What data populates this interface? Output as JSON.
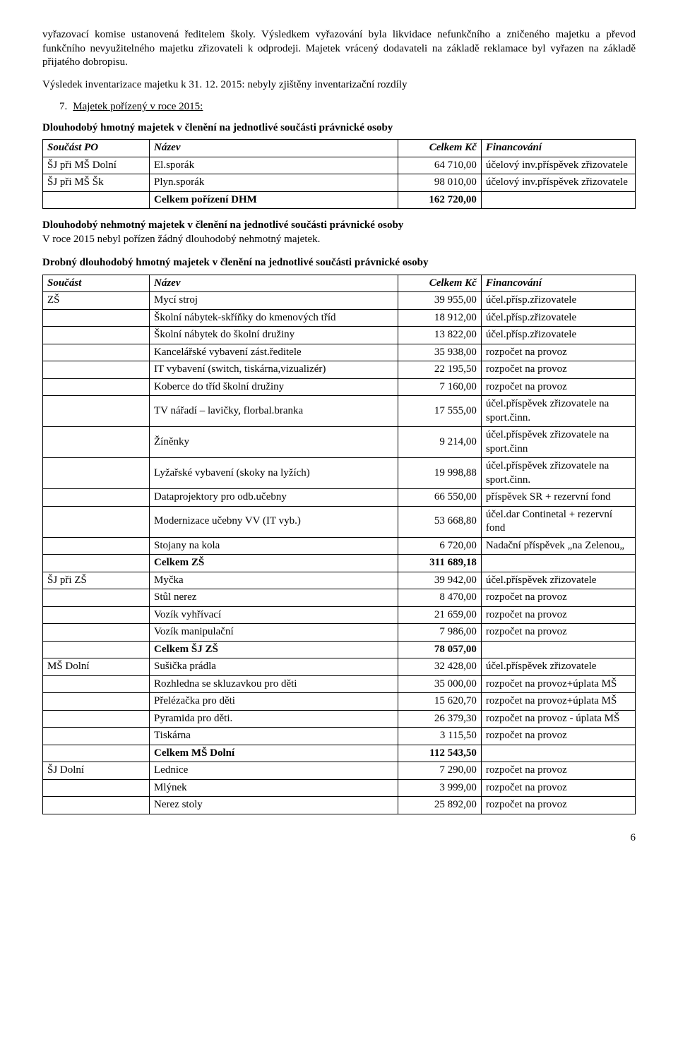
{
  "intro": {
    "p1": "vyřazovací komise ustanovená ředitelem školy. Výsledkem vyřazování byla likvidace nefunkčního a zničeného majetku a převod funkčního nevyužitelného majetku zřizovateli k odprodeji. Majetek vrácený dodavateli na základě reklamace byl vyřazen na základě přijatého dobropisu.",
    "p2": "Výsledek inventarizace majetku k 31. 12. 2015: nebyly zjištěny inventarizační rozdíly"
  },
  "section7": {
    "num": "7.",
    "title": "Majetek pořízený v roce 2015:"
  },
  "dhm": {
    "title": "Dlouhodobý hmotný majetek v členění na jednotlivé součásti právnické osoby",
    "headers": {
      "c1": "Součást PO",
      "c2": "Název",
      "c3": "Celkem Kč",
      "c4": "Financování"
    },
    "rows": [
      {
        "c1": "ŠJ při MŠ Dolní",
        "c2": "El.sporák",
        "c3": "64 710,00",
        "c4": "účelový inv.příspěvek zřizovatele"
      },
      {
        "c1": "ŠJ při MŠ Šk",
        "c2": "Plyn.sporák",
        "c3": "98 010,00",
        "c4": "účelový inv.příspěvek zřizovatele"
      },
      {
        "c1": "",
        "c2": "Celkem pořízení DHM",
        "c3": "162 720,00",
        "c4": "",
        "bold": true
      }
    ]
  },
  "dnm": {
    "title": "Dlouhodobý nehmotný majetek v členění na jednotlivé součásti právnické osoby",
    "text": "V roce 2015 nebyl pořízen žádný dlouhodobý nehmotný majetek."
  },
  "ddhm": {
    "title": "Drobný dlouhodobý hmotný majetek v členění na jednotlivé součásti právnické osoby",
    "headers": {
      "c1": "Součást",
      "c2": "Název",
      "c3": "Celkem Kč",
      "c4": "Financování"
    },
    "rows": [
      {
        "c1": "ZŠ",
        "c2": "Mycí stroj",
        "c3": "39 955,00",
        "c4": "účel.přísp.zřizovatele"
      },
      {
        "c1": "",
        "c2": "Školní nábytek-skříňky do kmenových tříd",
        "c3": "18 912,00",
        "c4": "účel.přísp.zřizovatele"
      },
      {
        "c1": "",
        "c2": "Školní nábytek do školní družiny",
        "c3": "13 822,00",
        "c4": "účel.přísp.zřizovatele"
      },
      {
        "c1": "",
        "c2": "Kancelářské vybavení zást.ředitele",
        "c3": "35 938,00",
        "c4": "rozpočet na provoz"
      },
      {
        "c1": "",
        "c2": "IT vybavení (switch, tiskárna,vizualizér)",
        "c3": "22 195,50",
        "c4": "rozpočet na provoz"
      },
      {
        "c1": "",
        "c2": "Koberce do tříd školní družiny",
        "c3": "7 160,00",
        "c4": "rozpočet na provoz"
      },
      {
        "c1": "",
        "c2": "TV nářadí – lavičky, florbal.branka",
        "c3": "17 555,00",
        "c4": "účel.příspěvek zřizovatele na sport.činn."
      },
      {
        "c1": "",
        "c2": "Žíněnky",
        "c3": "9 214,00",
        "c4": "účel.příspěvek zřizovatele na sport.činn"
      },
      {
        "c1": "",
        "c2": "Lyžařské vybavení (skoky na lyžích)",
        "c3": "19 998,88",
        "c4": "účel.příspěvek zřizovatele na sport.činn."
      },
      {
        "c1": "",
        "c2": "Dataprojektory pro odb.učebny",
        "c3": "66 550,00",
        "c4": "příspěvek SR + rezervní fond"
      },
      {
        "c1": "",
        "c2": "Modernizace učebny VV (IT vyb.)",
        "c3": "53 668,80",
        "c4": "účel.dar Continetal + rezervní fond"
      },
      {
        "c1": "",
        "c2": "Stojany na kola",
        "c3": "6 720,00",
        "c4": "Nadační příspěvek „na Zelenou„"
      },
      {
        "c1": "",
        "c2": "Celkem ZŠ",
        "c3": "311 689,18",
        "c4": "",
        "bold": true
      },
      {
        "c1": "ŠJ při ZŠ",
        "c2": "Myčka",
        "c3": "39 942,00",
        "c4": "účel.příspěvek zřizovatele"
      },
      {
        "c1": "",
        "c2": "Stůl nerez",
        "c3": "8 470,00",
        "c4": "rozpočet na provoz"
      },
      {
        "c1": "",
        "c2": "Vozík vyhřívací",
        "c3": "21 659,00",
        "c4": "rozpočet na provoz"
      },
      {
        "c1": "",
        "c2": "Vozík manipulační",
        "c3": "7 986,00",
        "c4": "rozpočet na provoz"
      },
      {
        "c1": "",
        "c2": "Celkem ŠJ ZŠ",
        "c3": "78 057,00",
        "c4": "",
        "bold": true
      },
      {
        "c1": "MŠ Dolní",
        "c2": "Sušička prádla",
        "c3": "32 428,00",
        "c4": "účel.příspěvek zřizovatele"
      },
      {
        "c1": "",
        "c2": "Rozhledna se skluzavkou pro děti",
        "c3": "35 000,00",
        "c4": "rozpočet na provoz+úplata MŠ"
      },
      {
        "c1": "",
        "c2": "Přelézačka pro děti",
        "c3": "15 620,70",
        "c4": "rozpočet na provoz+úplata MŠ"
      },
      {
        "c1": "",
        "c2": "Pyramida pro děti.",
        "c3": "26 379,30",
        "c4": "rozpočet na provoz - úplata MŠ"
      },
      {
        "c1": "",
        "c2": "Tiskárna",
        "c3": "3 115,50",
        "c4": "rozpočet na provoz"
      },
      {
        "c1": "",
        "c2": "Celkem MŠ Dolní",
        "c3": "112 543,50",
        "c4": "",
        "bold": true
      },
      {
        "c1": "ŠJ Dolní",
        "c2": "Lednice",
        "c3": "7 290,00",
        "c4": "rozpočet na provoz"
      },
      {
        "c1": "",
        "c2": "Mlýnek",
        "c3": "3 999,00",
        "c4": "rozpočet na provoz"
      },
      {
        "c1": "",
        "c2": "Nerez stoly",
        "c3": "25 892,00",
        "c4": "rozpočet na provoz"
      }
    ]
  },
  "page": "6"
}
